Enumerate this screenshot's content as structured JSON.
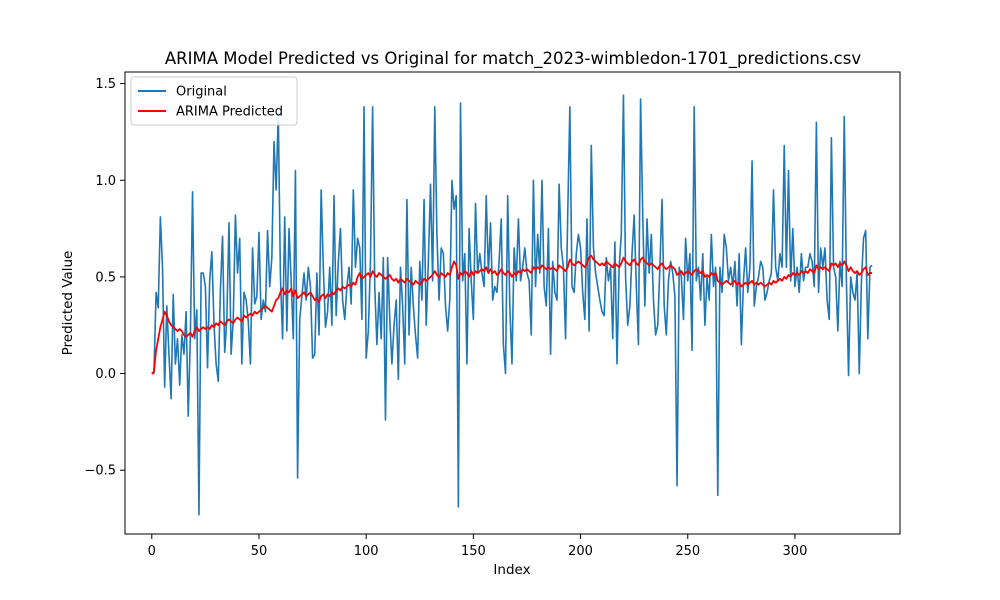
{
  "chart_data": {
    "type": "line",
    "title": "ARIMA Model Predicted vs Original for match_2023-wimbledon-1701_predictions.csv",
    "xlabel": "Index",
    "ylabel": "Predicted Value",
    "xlim": [
      -12.5,
      349
    ],
    "ylim": [
      -0.83,
      1.56
    ],
    "x_ticks": [
      0,
      50,
      100,
      150,
      200,
      250,
      300
    ],
    "y_ticks": [
      -0.5,
      0.0,
      0.5,
      1.0,
      1.5
    ],
    "x_tick_labels": [
      "0",
      "50",
      "100",
      "150",
      "200",
      "250",
      "300"
    ],
    "y_tick_labels": [
      "−0.5",
      "0.0",
      "0.5",
      "1.0",
      "1.5"
    ],
    "grid": false,
    "legend_position": "top-left",
    "series": [
      {
        "name": "Original",
        "color": "#1f77b4",
        "values": [
          0.0,
          0.0,
          0.42,
          0.34,
          0.81,
          0.55,
          -0.07,
          0.35,
          0.1,
          -0.13,
          0.41,
          0.05,
          0.18,
          -0.06,
          0.2,
          0.1,
          0.32,
          -0.22,
          0.2,
          0.94,
          0.18,
          0.33,
          -0.73,
          0.52,
          0.52,
          0.45,
          0.03,
          0.48,
          0.63,
          0.26,
          0.05,
          -0.04,
          0.43,
          0.71,
          0.11,
          0.28,
          0.78,
          0.1,
          0.28,
          0.82,
          0.52,
          0.7,
          0.05,
          0.42,
          0.38,
          0.27,
          0.05,
          0.65,
          0.36,
          0.4,
          0.73,
          0.28,
          0.38,
          0.32,
          0.74,
          0.45,
          0.6,
          1.2,
          0.95,
          1.35,
          0.5,
          0.18,
          0.81,
          0.22,
          0.75,
          0.48,
          0.18,
          1.05,
          -0.54,
          0.28,
          0.4,
          0.52,
          0.38,
          0.55,
          0.45,
          0.08,
          0.1,
          0.52,
          0.2,
          0.95,
          0.55,
          0.24,
          0.32,
          0.55,
          0.25,
          0.92,
          0.3,
          0.58,
          0.75,
          0.38,
          0.28,
          0.45,
          0.55,
          0.36,
          0.95,
          0.55,
          0.7,
          0.65,
          0.28,
          1.38,
          0.08,
          0.22,
          0.58,
          1.38,
          0.45,
          0.15,
          0.42,
          0.18,
          0.6,
          -0.24,
          0.6,
          0.28,
          0.05,
          0.25,
          0.38,
          -0.03,
          0.55,
          0.35,
          0.05,
          0.9,
          0.2,
          0.55,
          0.35,
          0.2,
          0.08,
          0.58,
          0.38,
          0.9,
          0.25,
          0.58,
          0.98,
          0.48,
          1.38,
          0.72,
          0.38,
          0.65,
          0.62,
          0.35,
          0.22,
          0.38,
          1.0,
          0.85,
          0.92,
          -0.69,
          1.4,
          0.48,
          0.62,
          0.05,
          0.75,
          0.48,
          0.28,
          0.88,
          0.52,
          0.62,
          0.52,
          0.45,
          0.92,
          0.52,
          0.78,
          0.38,
          0.45,
          0.42,
          0.58,
          0.8,
          0.15,
          0.0,
          0.92,
          0.35,
          0.05,
          0.65,
          0.48,
          0.8,
          0.48,
          0.55,
          0.65,
          0.52,
          0.48,
          0.2,
          1.0,
          0.45,
          0.72,
          0.52,
          1.0,
          0.45,
          0.35,
          0.75,
          0.1,
          0.58,
          0.42,
          0.38,
          0.98,
          0.65,
          0.55,
          0.18,
          0.82,
          1.38,
          0.45,
          0.42,
          0.62,
          0.72,
          0.65,
          0.42,
          0.28,
          0.8,
          0.22,
          1.18,
          0.65,
          0.52,
          0.45,
          0.38,
          0.32,
          0.3,
          0.6,
          0.48,
          0.55,
          0.18,
          0.68,
          0.05,
          0.55,
          0.72,
          1.44,
          0.5,
          0.25,
          0.35,
          0.62,
          0.82,
          0.45,
          0.15,
          1.42,
          0.82,
          0.35,
          0.8,
          0.52,
          0.72,
          0.38,
          0.2,
          0.25,
          0.55,
          0.9,
          0.35,
          0.2,
          0.48,
          0.58,
          0.52,
          0.4,
          -0.58,
          0.55,
          0.5,
          0.28,
          0.7,
          0.48,
          0.62,
          0.12,
          1.38,
          0.48,
          0.55,
          0.38,
          0.62,
          0.25,
          0.5,
          0.38,
          0.72,
          0.45,
          0.55,
          -0.63,
          0.55,
          0.42,
          0.72,
          0.65,
          0.48,
          0.55,
          0.45,
          0.58,
          0.35,
          0.62,
          0.15,
          0.48,
          0.65,
          0.42,
          0.55,
          1.1,
          0.35,
          0.45,
          0.5,
          0.58,
          0.55,
          0.38,
          0.42,
          0.48,
          0.52,
          0.95,
          0.55,
          0.48,
          0.62,
          0.55,
          1.18,
          0.55,
          1.05,
          0.48,
          0.75,
          0.45,
          0.55,
          0.42,
          0.62,
          0.48,
          0.55,
          0.55,
          0.62,
          0.58,
          0.45,
          1.3,
          0.42,
          0.65,
          0.55,
          0.65,
          0.38,
          0.28,
          1.22,
          0.55,
          0.5,
          0.22,
          0.58,
          0.45,
          1.33,
          0.48,
          -0.01,
          0.5,
          0.42,
          0.38,
          0.52,
          0.0,
          0.48,
          0.7,
          0.74,
          0.18,
          0.55,
          0.56
        ]
      },
      {
        "name": "ARIMA Predicted",
        "color": "#ff0000",
        "values": [
          0.0,
          0.01,
          0.12,
          0.18,
          0.24,
          0.28,
          0.32,
          0.3,
          0.27,
          0.25,
          0.24,
          0.23,
          0.22,
          0.23,
          0.22,
          0.2,
          0.19,
          0.2,
          0.21,
          0.19,
          0.22,
          0.24,
          0.22,
          0.23,
          0.24,
          0.23,
          0.24,
          0.23,
          0.25,
          0.24,
          0.26,
          0.25,
          0.27,
          0.26,
          0.25,
          0.27,
          0.28,
          0.27,
          0.26,
          0.28,
          0.29,
          0.28,
          0.27,
          0.3,
          0.29,
          0.3,
          0.31,
          0.3,
          0.32,
          0.31,
          0.32,
          0.33,
          0.34,
          0.35,
          0.34,
          0.33,
          0.32,
          0.35,
          0.38,
          0.39,
          0.42,
          0.44,
          0.41,
          0.43,
          0.42,
          0.44,
          0.4,
          0.43,
          0.39,
          0.4,
          0.41,
          0.42,
          0.4,
          0.41,
          0.42,
          0.4,
          0.38,
          0.39,
          0.37,
          0.4,
          0.41,
          0.39,
          0.41,
          0.4,
          0.42,
          0.41,
          0.43,
          0.44,
          0.43,
          0.45,
          0.44,
          0.45,
          0.46,
          0.45,
          0.47,
          0.46,
          0.5,
          0.52,
          0.49,
          0.5,
          0.51,
          0.52,
          0.5,
          0.53,
          0.51,
          0.5,
          0.52,
          0.51,
          0.5,
          0.49,
          0.5,
          0.51,
          0.49,
          0.48,
          0.49,
          0.47,
          0.49,
          0.48,
          0.47,
          0.49,
          0.48,
          0.47,
          0.46,
          0.48,
          0.47,
          0.46,
          0.47,
          0.49,
          0.48,
          0.49,
          0.5,
          0.51,
          0.53,
          0.51,
          0.5,
          0.52,
          0.51,
          0.5,
          0.52,
          0.51,
          0.55,
          0.58,
          0.56,
          0.49,
          0.52,
          0.51,
          0.53,
          0.52,
          0.5,
          0.53,
          0.51,
          0.53,
          0.52,
          0.53,
          0.54,
          0.53,
          0.55,
          0.52,
          0.54,
          0.52,
          0.53,
          0.51,
          0.52,
          0.54,
          0.52,
          0.51,
          0.53,
          0.52,
          0.5,
          0.52,
          0.51,
          0.53,
          0.52,
          0.54,
          0.53,
          0.54,
          0.53,
          0.52,
          0.55,
          0.54,
          0.55,
          0.54,
          0.56,
          0.55,
          0.54,
          0.55,
          0.54,
          0.55,
          0.54,
          0.53,
          0.56,
          0.55,
          0.54,
          0.53,
          0.55,
          0.59,
          0.57,
          0.56,
          0.57,
          0.58,
          0.57,
          0.56,
          0.55,
          0.57,
          0.6,
          0.61,
          0.59,
          0.58,
          0.57,
          0.56,
          0.57,
          0.56,
          0.58,
          0.57,
          0.56,
          0.55,
          0.57,
          0.56,
          0.55,
          0.57,
          0.6,
          0.58,
          0.57,
          0.56,
          0.58,
          0.59,
          0.57,
          0.56,
          0.59,
          0.6,
          0.58,
          0.57,
          0.56,
          0.57,
          0.56,
          0.55,
          0.54,
          0.56,
          0.57,
          0.55,
          0.54,
          0.55,
          0.56,
          0.55,
          0.54,
          0.51,
          0.52,
          0.53,
          0.51,
          0.52,
          0.53,
          0.52,
          0.51,
          0.53,
          0.54,
          0.53,
          0.52,
          0.53,
          0.5,
          0.51,
          0.5,
          0.52,
          0.51,
          0.52,
          0.48,
          0.47,
          0.46,
          0.47,
          0.48,
          0.47,
          0.46,
          0.47,
          0.48,
          0.46,
          0.47,
          0.45,
          0.46,
          0.47,
          0.46,
          0.47,
          0.48,
          0.46,
          0.47,
          0.46,
          0.47,
          0.46,
          0.45,
          0.46,
          0.47,
          0.46,
          0.48,
          0.47,
          0.48,
          0.49,
          0.48,
          0.5,
          0.49,
          0.51,
          0.5,
          0.52,
          0.51,
          0.52,
          0.51,
          0.53,
          0.52,
          0.53,
          0.52,
          0.54,
          0.53,
          0.52,
          0.56,
          0.54,
          0.55,
          0.54,
          0.55,
          0.54,
          0.53,
          0.57,
          0.56,
          0.57,
          0.55,
          0.57,
          0.56,
          0.58,
          0.56,
          0.53,
          0.55,
          0.53,
          0.52,
          0.53,
          0.51,
          0.52,
          0.54,
          0.55,
          0.51,
          0.52,
          0.52
        ]
      }
    ]
  }
}
